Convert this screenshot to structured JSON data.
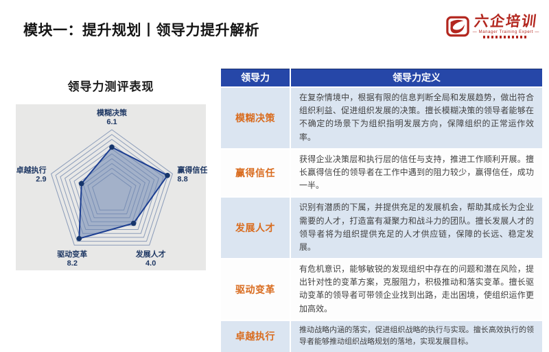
{
  "page": {
    "title": "模块一：提升规划丨领导力提升解析"
  },
  "logo": {
    "brand": "六企培训",
    "tagline": "— Manager Training Expert —"
  },
  "chart_data": {
    "type": "radar",
    "title": "领导力测评表现",
    "categories": [
      "模糊决策",
      "赢得信任",
      "发展人才",
      "驱动变革",
      "卓越执行"
    ],
    "values": [
      6.1,
      8.8,
      4.0,
      8.2,
      2.9
    ],
    "scale_max": 10,
    "grid_rings": 10,
    "grid": true,
    "legend": "none"
  },
  "table": {
    "headers": [
      "领导力",
      "领导力定义"
    ],
    "rows": [
      {
        "term": "模糊决策",
        "definition": "在复杂情境中，根据有限的信息判断全局和发展趋势，做出符合组织利益、促进组织发展的决策。擅长模糊决策的领导者能够在不确定的场景下为组织指明发展方向，保障组织的正常运作效率。"
      },
      {
        "term": "赢得信任",
        "definition": "获得企业决策层和执行层的信任与支持，推进工作顺利开展。擅长赢得信任的领导者在工作中遇到的阻力较少，赢得信任，成功一半。"
      },
      {
        "term": "发展人才",
        "definition": "识别有潜质的下属，并提供充足的发展机会，帮助其成长为企业需要的人才，打造富有凝聚力和战斗力的团队。擅长发展人才的领导者将为组织提供充足的人才供应链，保障的长远、稳定发展。"
      },
      {
        "term": "驱动变革",
        "definition": "有危机意识，能够敏锐的发现组织中存在的问题和潜在风险，提出针对性的变革方案，克服阻力，积极推动和落实变革。擅长驱动变革的领导者可带领企业找到出路，走出困境，使组织运作更加高效。"
      },
      {
        "term": "卓越执行",
        "definition": "推动战略内涵的落实，促进组织战略的执行与实现。擅长高效执行的领导者能够推动组织战略规划的落地，实现发展目标。"
      }
    ]
  },
  "colors": {
    "header_blue": "#2647A8",
    "row_light_blue": "#DBE5F1",
    "term_orange": "#D96C1F",
    "radar_label_navy": "#1F3864",
    "radar_stroke": "#1C3E91",
    "radar_fill": "rgba(106,132,176,0.55)",
    "radar_grid": "#8A9BB9",
    "logo_red": "#B3271F",
    "panel_gray": "#E8E8E7"
  }
}
